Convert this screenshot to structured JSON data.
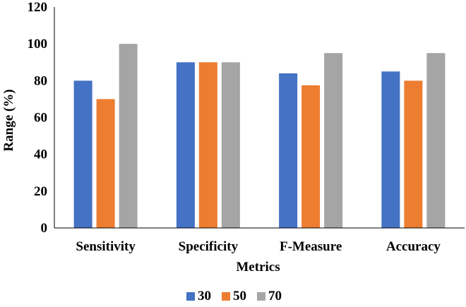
{
  "chart_data": {
    "type": "bar",
    "title": "",
    "xlabel": "Metrics",
    "ylabel": "Range (%)",
    "categories": [
      "Sensitivity",
      "Specificity",
      "F-Measure",
      "Accuracy"
    ],
    "series": [
      {
        "name": "30",
        "color": "#4472C4",
        "values": [
          80,
          90,
          84,
          85
        ]
      },
      {
        "name": "50",
        "color": "#ED7D31",
        "values": [
          70,
          90,
          77.5,
          80
        ]
      },
      {
        "name": "70",
        "color": "#A5A5A5",
        "values": [
          100,
          90,
          95,
          95
        ]
      }
    ],
    "ylim": [
      0,
      120
    ],
    "yticks": [
      0,
      20,
      40,
      60,
      80,
      100,
      120
    ],
    "grid": false,
    "legend": "bottom"
  }
}
